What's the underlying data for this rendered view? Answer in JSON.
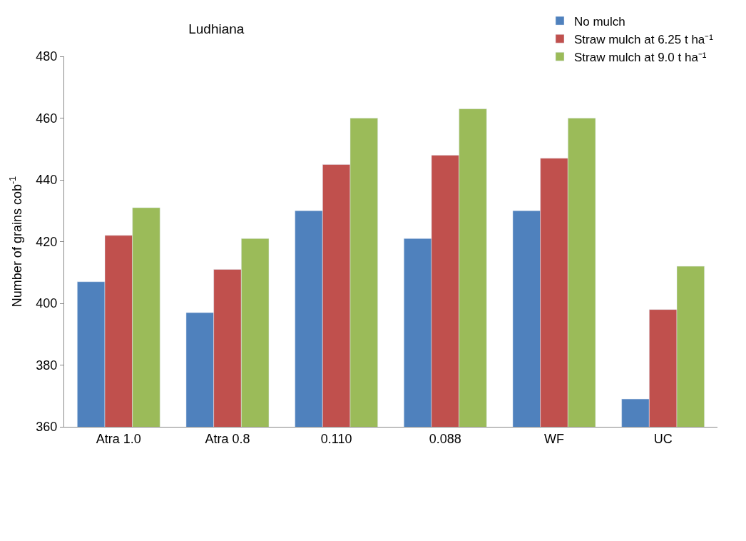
{
  "chart_data": {
    "type": "bar",
    "title": "Ludhiana",
    "ylabel": "Number of grains cob$^{-1}$",
    "categories": [
      "Atra 1.0",
      "Atra 0.8",
      "0.110",
      "0.088",
      "WF",
      "UC"
    ],
    "series": [
      {
        "name": "No mulch",
        "color": "#4f81bd",
        "values": [
          407,
          397,
          430,
          421,
          430,
          369
        ]
      },
      {
        "name": "Straw mulch at 6.25 t ha⁻¹",
        "color": "#c0504d",
        "values": [
          422,
          411,
          445,
          448,
          447,
          398
        ]
      },
      {
        "name": "Straw mulch at 9.0 t ha⁻¹",
        "color": "#9bbb59",
        "values": [
          431,
          421,
          460,
          463,
          460,
          412
        ]
      }
    ],
    "ylim": [
      360,
      480
    ],
    "yticks": [
      360,
      380,
      400,
      420,
      440,
      460,
      480
    ],
    "grid": false,
    "legend": "top right"
  }
}
